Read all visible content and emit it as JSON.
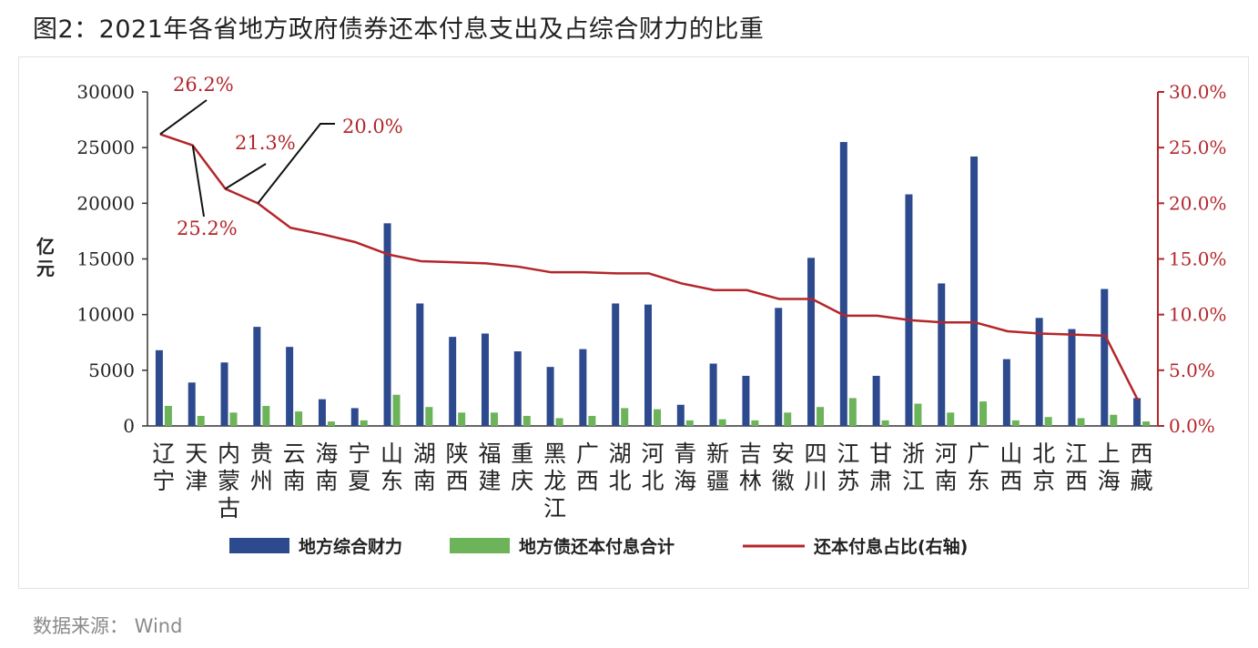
{
  "title": "图2：2021年各省地方政府债券还本付息支出及占综合财力的比重",
  "source": "数据来源：   Wind",
  "colors": {
    "bar1": "#2e4a8f",
    "bar2": "#6db35a",
    "line": "#b3262b"
  },
  "chart_data": {
    "type": "bar",
    "ylabel": "亿\n元",
    "ylim": [
      0,
      30000
    ],
    "y_ticks": [
      "0",
      "5000",
      "10000",
      "15000",
      "20000",
      "25000",
      "30000"
    ],
    "y2lim": [
      0,
      30
    ],
    "y2_ticks": [
      "0.0%",
      "5.0%",
      "10.0%",
      "15.0%",
      "20.0%",
      "25.0%",
      "30.0%"
    ],
    "categories": [
      "辽宁",
      "天津",
      "内蒙古",
      "贵州",
      "云南",
      "海南",
      "宁夏",
      "山东",
      "湖南",
      "陕西",
      "福建",
      "重庆",
      "黑龙江",
      "广西",
      "湖北",
      "河北",
      "青海",
      "新疆",
      "吉林",
      "安徽",
      "四川",
      "江苏",
      "甘肃",
      "浙江",
      "河南",
      "广东",
      "山西",
      "北京",
      "江西",
      "上海",
      "西藏"
    ],
    "series": [
      {
        "name": "地方综合财力",
        "type": "bar",
        "axis": "left",
        "values": [
          6800,
          3900,
          5700,
          8900,
          7100,
          2400,
          1600,
          18200,
          11000,
          8000,
          8300,
          6700,
          5300,
          6900,
          11000,
          10900,
          1900,
          5600,
          4500,
          10600,
          15100,
          25500,
          4500,
          20800,
          12800,
          24200,
          6000,
          9700,
          8700,
          12300,
          2500
        ]
      },
      {
        "name": "地方债还本付息合计",
        "type": "bar",
        "axis": "left",
        "values": [
          1800,
          900,
          1200,
          1800,
          1300,
          400,
          500,
          2800,
          1700,
          1200,
          1200,
          900,
          700,
          900,
          1600,
          1500,
          500,
          600,
          500,
          1200,
          1700,
          2500,
          500,
          2000,
          1200,
          2200,
          500,
          800,
          700,
          1000,
          400
        ]
      },
      {
        "name": "还本付息占比(右轴)",
        "type": "line",
        "axis": "right",
        "values": [
          26.2,
          25.2,
          21.3,
          20.0,
          17.8,
          17.2,
          16.5,
          15.4,
          14.8,
          14.7,
          14.6,
          14.3,
          13.8,
          13.8,
          13.7,
          13.7,
          12.8,
          12.2,
          12.2,
          11.4,
          11.4,
          9.9,
          9.9,
          9.5,
          9.3,
          9.3,
          8.5,
          8.3,
          8.2,
          8.1,
          2.3
        ]
      }
    ],
    "legend": [
      "地方综合财力",
      "地方债还本付息合计",
      "还本付息占比(右轴)"
    ],
    "legend_position": "bottom",
    "annotations": [
      "26.2%",
      "25.2%",
      "21.3%",
      "20.0%"
    ],
    "grid": false
  }
}
